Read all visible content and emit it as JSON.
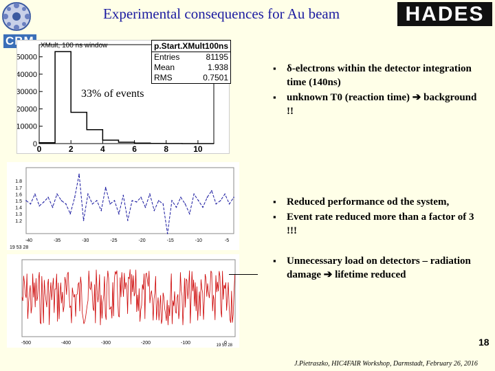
{
  "title": "Experimental consequences for Au beam",
  "logos": {
    "cbm": "CBM",
    "hades": "HADES"
  },
  "histogram": {
    "window_label": "XMult, 100 ns window",
    "stats_title": "p.Start.XMult100ns",
    "stats": [
      {
        "k": "Entries",
        "v": "81195"
      },
      {
        "k": "Mean",
        "v": "1.938"
      },
      {
        "k": "RMS",
        "v": "0.7501"
      }
    ],
    "annotation": "33% of events"
  },
  "chart_data": [
    {
      "type": "bar",
      "categories": [
        "0",
        "1",
        "2",
        "3",
        "4",
        "5",
        "6",
        "7",
        "8",
        "9",
        "10"
      ],
      "values": [
        500,
        53000,
        18000,
        8000,
        2000,
        800,
        300,
        100,
        50,
        20,
        10
      ],
      "yticks": [
        "0",
        "10000",
        "20000",
        "30000",
        "40000",
        "50000"
      ],
      "xticks": [
        "0",
        "2",
        "4",
        "6",
        "8",
        "10"
      ],
      "ylim": [
        0,
        57000
      ],
      "xlim": [
        0,
        11
      ]
    },
    {
      "type": "line",
      "y": [
        1.5,
        1.45,
        1.6,
        1.42,
        1.48,
        1.55,
        1.4,
        1.6,
        1.5,
        1.45,
        1.3,
        1.55,
        1.9,
        1.2,
        1.6,
        1.45,
        1.5,
        1.35,
        1.7,
        1.45,
        1.5,
        1.3,
        1.58,
        1.2,
        1.5,
        1.48,
        1.55,
        1.4,
        1.6,
        1.35,
        1.5,
        1.45,
        1.0,
        1.5,
        1.4,
        1.55,
        1.45,
        1.3,
        1.6,
        1.5,
        1.4,
        1.55,
        1.65,
        1.45,
        1.5,
        1.6,
        1.45,
        1.55
      ],
      "xticks": [
        "-40",
        "-35",
        "-30",
        "-25",
        "-20",
        "-15",
        "-10",
        "-5"
      ],
      "yticks": [
        "1.2",
        "1.3",
        "1.4",
        "1.5",
        "1.6",
        "1.7",
        "1.8"
      ]
    },
    {
      "type": "line",
      "xticks": [
        "-500",
        "-400",
        "-300",
        "-200",
        "-100",
        "0"
      ],
      "timestamp": "19 50 28"
    }
  ],
  "plot2_time": "19 53 28",
  "bullets_group1": [
    "δ-electrons within the detector integration time (140ns)",
    "unknown T0 (reaction time) ➔ background !!"
  ],
  "bullets_group2": [
    "Reduced performance od the system,",
    "Event rate reduced more than a factor of 3 !!!"
  ],
  "bullets_group3": [
    "Unnecessary load on detectors – radiation damage ➔ lifetime reduced"
  ],
  "page_number": "18",
  "footer": "J.Pietraszko, HIC4FAIR Workshop, Darmstadt, February 26, 2016",
  "colors": {
    "title": "#1a1aa0",
    "plot_red": "#cc0000",
    "plot_blue": "#1a1aa0"
  }
}
